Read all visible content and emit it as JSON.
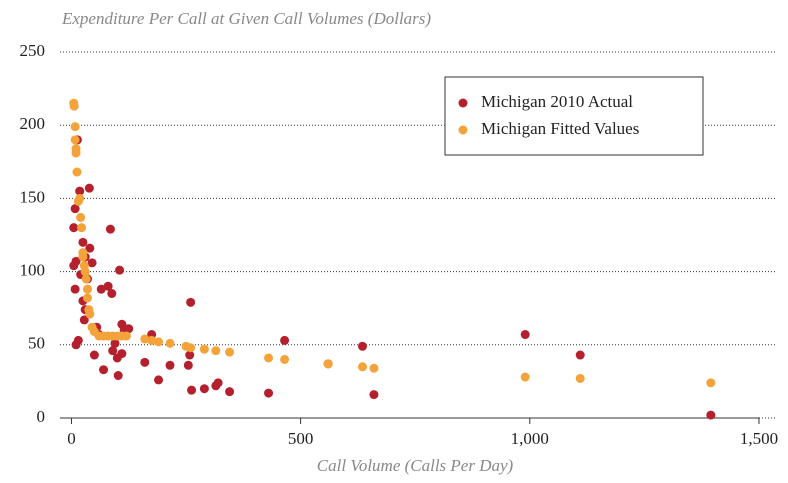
{
  "chart_data": {
    "type": "scatter",
    "title": "Expenditure Per Call at Given Call Volumes (Dollars)",
    "x_label": "Call Volume (Calls Per Day)",
    "xlim": [
      -25,
      1535
    ],
    "ylim": [
      0,
      250
    ],
    "xticks": [
      0,
      500,
      {
        "value": 1000,
        "label": "1,000"
      },
      {
        "value": 1500,
        "label": "1,500"
      }
    ],
    "yticks": [
      0,
      50,
      100,
      150,
      200,
      250
    ],
    "grid": true,
    "legend": "upper right",
    "series": [
      {
        "name": "Michigan 2010 Actual",
        "color": "#b5202e",
        "x": [
          13,
          18,
          39,
          8,
          5,
          10,
          5,
          8,
          10,
          15,
          25,
          30,
          40,
          35,
          20,
          25,
          30,
          28,
          45,
          55,
          50,
          60,
          65,
          70,
          80,
          85,
          88,
          90,
          95,
          100,
          102,
          105,
          110,
          110,
          115,
          125,
          160,
          175,
          190,
          215,
          255,
          258,
          260,
          262,
          290,
          315,
          320,
          345,
          430,
          465,
          560,
          635,
          660,
          990,
          1110,
          1395
        ],
        "values": [
          190,
          155,
          157,
          143,
          130,
          107,
          104,
          88,
          50,
          53,
          120,
          110,
          116,
          95,
          98,
          80,
          74,
          67,
          106,
          62,
          43,
          57,
          88,
          33,
          90,
          129,
          85,
          46,
          51,
          41,
          29,
          101,
          64,
          44,
          60,
          61,
          38,
          57,
          26,
          36,
          36,
          43,
          79,
          19,
          20,
          22,
          24,
          18,
          17,
          53,
          37,
          49,
          16,
          57,
          43,
          2
        ]
      },
      {
        "name": "Michigan Fitted Values",
        "color": "#f4a23a",
        "x": [
          5,
          6,
          8,
          8,
          10,
          10,
          12,
          15,
          18,
          20,
          22,
          25,
          25,
          28,
          30,
          32,
          35,
          35,
          38,
          40,
          45,
          50,
          60,
          70,
          80,
          90,
          100,
          110,
          120,
          160,
          175,
          190,
          215,
          250,
          260,
          290,
          315,
          345,
          430,
          465,
          560,
          635,
          660,
          990,
          1110,
          1395
        ],
        "values": [
          215,
          213,
          199,
          190,
          184,
          181,
          168,
          148,
          150,
          137,
          130,
          113,
          110,
          104,
          100,
          95,
          88,
          82,
          74,
          71,
          62,
          59,
          56,
          56,
          56,
          56,
          56,
          56,
          56,
          54,
          53,
          52,
          51,
          49,
          48,
          47,
          46,
          45,
          41,
          40,
          37,
          35,
          34,
          28,
          27,
          24
        ]
      }
    ]
  }
}
